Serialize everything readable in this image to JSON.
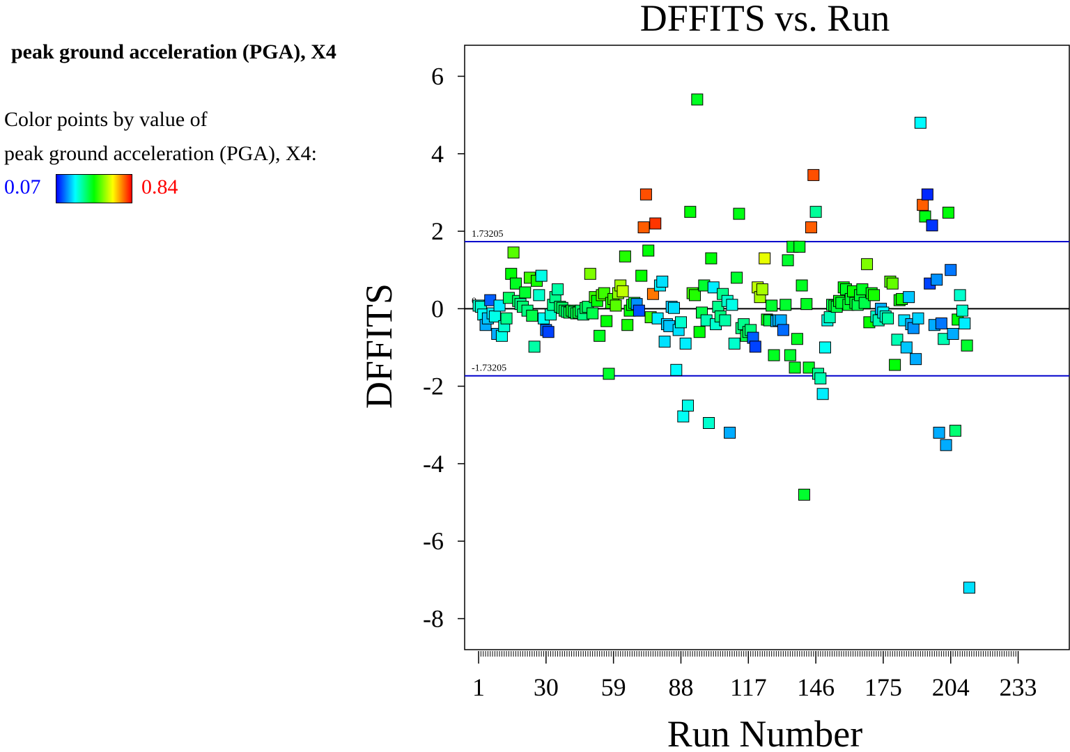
{
  "sidebar": {
    "variable_title": "peak ground acceleration (PGA), X4",
    "color_caption_line1": "Color points by value of",
    "color_caption_line2": " peak ground acceleration (PGA), X4:",
    "scale_min": "0.07",
    "scale_max": "0.84",
    "scale_colors": [
      "#0000ff",
      "#00ffff",
      "#00ff00",
      "#ffff00",
      "#ff0000"
    ]
  },
  "chart_data": {
    "type": "scatter",
    "title": "DFFITS vs. Run",
    "xlabel": "Run Number",
    "ylabel": "DFFITS",
    "xlim": [
      -5,
      255
    ],
    "ylim": [
      -8.8,
      6.8
    ],
    "x_ticks": [
      1,
      30,
      59,
      88,
      117,
      146,
      175,
      204,
      233
    ],
    "y_ticks": [
      6,
      4,
      2,
      0,
      -2,
      -4,
      -6,
      -8
    ],
    "reference_lines": [
      {
        "value": 1.73205,
        "label": "1.73205",
        "color": "#0000cc"
      },
      {
        "value": 0,
        "label": "0",
        "color": "#000000"
      },
      {
        "value": -1.73205,
        "label": "-1.73205",
        "color": "#0000cc"
      }
    ],
    "color_scale": {
      "min": 0.07,
      "max": 0.84,
      "variable": "peak ground acceleration (PGA), X4"
    },
    "points": [
      [
        1,
        0.08,
        0.3
      ],
      [
        2,
        0.05,
        0.3
      ],
      [
        3,
        -0.15,
        0.27
      ],
      [
        4,
        -0.42,
        0.2
      ],
      [
        5,
        -0.25,
        0.22
      ],
      [
        6,
        0.22,
        0.14
      ],
      [
        7,
        -0.12,
        0.25
      ],
      [
        8,
        -0.2,
        0.28
      ],
      [
        9,
        -0.65,
        0.2
      ],
      [
        10,
        0.08,
        0.25
      ],
      [
        11,
        -0.7,
        0.28
      ],
      [
        12,
        -0.45,
        0.3
      ],
      [
        13,
        -0.25,
        0.35
      ],
      [
        14,
        0.28,
        0.38
      ],
      [
        15,
        0.9,
        0.45
      ],
      [
        16,
        1.45,
        0.52
      ],
      [
        17,
        0.65,
        0.43
      ],
      [
        18,
        0.2,
        0.38
      ],
      [
        19,
        0.12,
        0.35
      ],
      [
        20,
        0.05,
        0.37
      ],
      [
        21,
        0.42,
        0.42
      ],
      [
        22,
        -0.05,
        0.36
      ],
      [
        23,
        0.8,
        0.5
      ],
      [
        24,
        -0.18,
        0.4
      ],
      [
        25,
        -0.98,
        0.33
      ],
      [
        26,
        0.72,
        0.47
      ],
      [
        27,
        0.35,
        0.3
      ],
      [
        28,
        0.85,
        0.28
      ],
      [
        29,
        -0.25,
        0.27
      ],
      [
        30,
        -0.55,
        0.15
      ],
      [
        31,
        -0.6,
        0.12
      ],
      [
        32,
        -0.15,
        0.3
      ],
      [
        33,
        0.1,
        0.35
      ],
      [
        34,
        0.3,
        0.35
      ],
      [
        35,
        0.5,
        0.33
      ],
      [
        36,
        0.05,
        0.38
      ],
      [
        37,
        0.02,
        0.38
      ],
      [
        38,
        -0.05,
        0.39
      ],
      [
        39,
        -0.08,
        0.37
      ],
      [
        40,
        -0.1,
        0.4
      ],
      [
        41,
        -0.05,
        0.42
      ],
      [
        42,
        -0.08,
        0.39
      ],
      [
        43,
        -0.12,
        0.4
      ],
      [
        44,
        -0.1,
        0.41
      ],
      [
        45,
        -0.05,
        0.38
      ],
      [
        46,
        -0.15,
        0.36
      ],
      [
        47,
        0.02,
        0.39
      ],
      [
        48,
        0.05,
        0.38
      ],
      [
        49,
        0.9,
        0.55
      ],
      [
        50,
        -0.12,
        0.4
      ],
      [
        51,
        0.3,
        0.5
      ],
      [
        52,
        0.2,
        0.45
      ],
      [
        53,
        -0.7,
        0.43
      ],
      [
        54,
        0.35,
        0.52
      ],
      [
        55,
        0.4,
        0.5
      ],
      [
        56,
        -0.32,
        0.45
      ],
      [
        57,
        -1.68,
        0.42
      ],
      [
        58,
        0.15,
        0.48
      ],
      [
        59,
        0.25,
        0.5
      ],
      [
        60,
        0.08,
        0.52
      ],
      [
        61,
        0.4,
        0.56
      ],
      [
        62,
        0.6,
        0.58
      ],
      [
        63,
        0.45,
        0.6
      ],
      [
        64,
        1.35,
        0.48
      ],
      [
        65,
        -0.42,
        0.47
      ],
      [
        66,
        -0.05,
        0.45
      ],
      [
        67,
        0.1,
        0.44
      ],
      [
        68,
        0.15,
        0.42
      ],
      [
        69,
        0.12,
        0.18
      ],
      [
        70,
        -0.05,
        0.13
      ],
      [
        71,
        0.85,
        0.46
      ],
      [
        72,
        2.1,
        0.77
      ],
      [
        73,
        2.95,
        0.78
      ],
      [
        74,
        1.5,
        0.45
      ],
      [
        75,
        -0.22,
        0.5
      ],
      [
        76,
        0.38,
        0.75
      ],
      [
        77,
        2.2,
        0.8
      ],
      [
        78,
        -0.25,
        0.25
      ],
      [
        79,
        0.6,
        0.25
      ],
      [
        80,
        0.7,
        0.24
      ],
      [
        81,
        -0.85,
        0.24
      ],
      [
        82,
        -0.4,
        0.22
      ],
      [
        83,
        -0.45,
        0.22
      ],
      [
        84,
        0.05,
        0.22
      ],
      [
        85,
        0.02,
        0.24
      ],
      [
        86,
        -1.58,
        0.26
      ],
      [
        87,
        -0.55,
        0.24
      ],
      [
        88,
        -0.35,
        0.3
      ],
      [
        89,
        -2.78,
        0.27
      ],
      [
        90,
        -0.9,
        0.25
      ],
      [
        91,
        -2.5,
        0.28
      ],
      [
        92,
        2.5,
        0.45
      ],
      [
        93,
        0.4,
        0.5
      ],
      [
        94,
        0.35,
        0.48
      ],
      [
        95,
        5.4,
        0.43
      ],
      [
        96,
        -0.6,
        0.45
      ],
      [
        97,
        -0.1,
        0.4
      ],
      [
        98,
        0.6,
        0.42
      ],
      [
        99,
        -0.3,
        0.32
      ],
      [
        100,
        -2.95,
        0.3
      ],
      [
        101,
        1.3,
        0.45
      ],
      [
        102,
        0.55,
        0.25
      ],
      [
        103,
        -0.4,
        0.3
      ],
      [
        104,
        0.05,
        0.35
      ],
      [
        105,
        -0.2,
        0.36
      ],
      [
        106,
        0.38,
        0.35
      ],
      [
        107,
        -0.3,
        0.33
      ],
      [
        108,
        0.2,
        0.3
      ],
      [
        109,
        -3.2,
        0.2
      ],
      [
        110,
        0.1,
        0.28
      ],
      [
        111,
        -0.9,
        0.3
      ],
      [
        112,
        0.8,
        0.42
      ],
      [
        113,
        2.45,
        0.44
      ],
      [
        114,
        -0.5,
        0.36
      ],
      [
        115,
        -0.4,
        0.35
      ],
      [
        116,
        -0.7,
        0.4
      ],
      [
        117,
        -0.6,
        0.38
      ],
      [
        118,
        -0.55,
        0.36
      ],
      [
        119,
        -0.75,
        0.14
      ],
      [
        120,
        -0.98,
        0.12
      ],
      [
        121,
        0.55,
        0.6
      ],
      [
        122,
        0.3,
        0.58
      ],
      [
        123,
        0.5,
        0.58
      ],
      [
        124,
        1.3,
        0.63
      ],
      [
        125,
        -0.28,
        0.45
      ],
      [
        126,
        -0.3,
        0.4
      ],
      [
        127,
        0.08,
        0.42
      ],
      [
        128,
        -1.2,
        0.43
      ],
      [
        129,
        -0.32,
        0.2
      ],
      [
        130,
        -0.3,
        0.22
      ],
      [
        131,
        -0.3,
        0.2
      ],
      [
        132,
        -0.55,
        0.15
      ],
      [
        133,
        0.1,
        0.42
      ],
      [
        134,
        1.25,
        0.42
      ],
      [
        135,
        -1.2,
        0.42
      ],
      [
        136,
        1.6,
        0.43
      ],
      [
        137,
        -1.52,
        0.43
      ],
      [
        138,
        -0.78,
        0.43
      ],
      [
        139,
        1.6,
        0.43
      ],
      [
        140,
        0.6,
        0.43
      ],
      [
        141,
        -4.8,
        0.42
      ],
      [
        142,
        0.12,
        0.43
      ],
      [
        143,
        -1.52,
        0.43
      ],
      [
        144,
        2.1,
        0.77
      ],
      [
        145,
        3.45,
        0.78
      ],
      [
        146,
        2.5,
        0.34
      ],
      [
        147,
        -1.68,
        0.34
      ],
      [
        148,
        -1.8,
        0.32
      ],
      [
        149,
        -2.2,
        0.25
      ],
      [
        150,
        -1.0,
        0.27
      ],
      [
        151,
        -0.3,
        0.28
      ],
      [
        152,
        -0.22,
        0.32
      ],
      [
        153,
        0.1,
        0.4
      ],
      [
        154,
        0.08,
        0.42
      ],
      [
        155,
        0.05,
        0.41
      ],
      [
        156,
        0.2,
        0.44
      ],
      [
        157,
        0.15,
        0.42
      ],
      [
        158,
        0.55,
        0.45
      ],
      [
        159,
        0.5,
        0.43
      ],
      [
        160,
        0.1,
        0.42
      ],
      [
        161,
        0.25,
        0.42
      ],
      [
        162,
        0.45,
        0.46
      ],
      [
        163,
        0.15,
        0.42
      ],
      [
        164,
        0.1,
        0.4
      ],
      [
        165,
        0.35,
        0.42
      ],
      [
        166,
        0.5,
        0.43
      ],
      [
        167,
        0.15,
        0.4
      ],
      [
        168,
        1.15,
        0.55
      ],
      [
        169,
        -0.35,
        0.46
      ],
      [
        170,
        0.4,
        0.44
      ],
      [
        171,
        0.35,
        0.47
      ],
      [
        172,
        -0.2,
        0.3
      ],
      [
        173,
        -0.3,
        0.32
      ],
      [
        174,
        0.0,
        0.2
      ],
      [
        175,
        -0.1,
        0.26
      ],
      [
        176,
        -0.2,
        0.3
      ],
      [
        177,
        -0.25,
        0.33
      ],
      [
        178,
        0.7,
        0.52
      ],
      [
        179,
        0.65,
        0.53
      ],
      [
        180,
        -1.45,
        0.45
      ],
      [
        181,
        -0.8,
        0.32
      ],
      [
        182,
        0.22,
        0.45
      ],
      [
        183,
        0.25,
        0.47
      ],
      [
        184,
        -0.3,
        0.24
      ],
      [
        185,
        -1.0,
        0.22
      ],
      [
        186,
        0.3,
        0.22
      ],
      [
        187,
        -0.4,
        0.2
      ],
      [
        188,
        -0.5,
        0.18
      ],
      [
        189,
        -1.3,
        0.2
      ],
      [
        190,
        -0.25,
        0.23
      ],
      [
        191,
        4.8,
        0.26
      ],
      [
        192,
        2.68,
        0.77
      ],
      [
        193,
        2.38,
        0.44
      ],
      [
        194,
        2.95,
        0.1
      ],
      [
        195,
        0.65,
        0.12
      ],
      [
        196,
        2.15,
        0.11
      ],
      [
        197,
        -0.42,
        0.2
      ],
      [
        198,
        0.75,
        0.18
      ],
      [
        199,
        -3.2,
        0.2
      ],
      [
        200,
        -0.38,
        0.16
      ],
      [
        201,
        -0.78,
        0.32
      ],
      [
        202,
        -3.52,
        0.2
      ],
      [
        203,
        2.48,
        0.45
      ],
      [
        204,
        1.0,
        0.16
      ],
      [
        205,
        -0.65,
        0.2
      ],
      [
        206,
        -3.15,
        0.37
      ],
      [
        207,
        -0.28,
        0.45
      ],
      [
        208,
        0.35,
        0.3
      ],
      [
        209,
        -0.05,
        0.3
      ],
      [
        210,
        -0.38,
        0.25
      ],
      [
        211,
        -0.95,
        0.42
      ],
      [
        212,
        -7.2,
        0.24
      ]
    ]
  }
}
